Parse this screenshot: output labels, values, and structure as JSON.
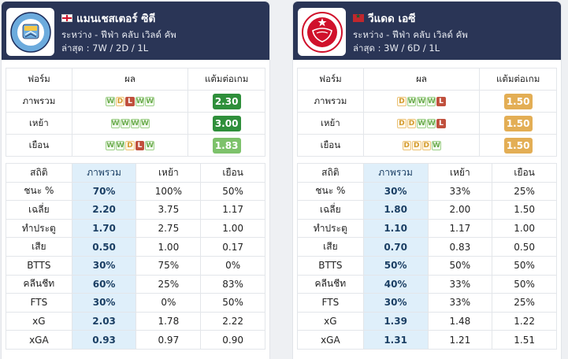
{
  "teams": [
    {
      "name": "แมนเชสเตอร์ ซิตี",
      "flag": "england-flag",
      "logo_text": "MANCHESTER CITY",
      "colors": {
        "primary": "#6cabdd",
        "secondary": "#1c2c5b"
      },
      "league": "ระหว่าง - ฟีฟ่า คลับ เวิลด์ คัพ",
      "latest": "ล่าสุด : 7W / 2D / 1L",
      "form_headers": [
        "ฟอร์ม",
        "ผล",
        "แต้มต่อเกม"
      ],
      "form_rows": [
        {
          "label": "ภาพรวม",
          "results": [
            "W",
            "D",
            "L",
            "W",
            "W"
          ],
          "ppg": "2.30",
          "ppg_level": "g1"
        },
        {
          "label": "เหย้า",
          "results": [
            "W",
            "W",
            "W",
            "W"
          ],
          "ppg": "3.00",
          "ppg_level": "g1"
        },
        {
          "label": "เยือน",
          "results": [
            "W",
            "W",
            "D",
            "L",
            "W"
          ],
          "ppg": "1.83",
          "ppg_level": "g2"
        }
      ],
      "stat_headers": [
        "สถิติ",
        "ภาพรวม",
        "เหย้า",
        "เยือน"
      ],
      "stat_rows": [
        [
          "ชนะ %",
          "70%",
          "100%",
          "50%"
        ],
        [
          "เฉลี่ย",
          "2.20",
          "3.75",
          "1.17"
        ],
        [
          "ทำประตู",
          "1.70",
          "2.75",
          "1.00"
        ],
        [
          "เสีย",
          "0.50",
          "1.00",
          "0.17"
        ],
        [
          "BTTS",
          "30%",
          "75%",
          "0%"
        ],
        [
          "คลีนชีท",
          "60%",
          "25%",
          "83%"
        ],
        [
          "FTS",
          "30%",
          "0%",
          "50%"
        ],
        [
          "xG",
          "2.03",
          "1.78",
          "2.22"
        ],
        [
          "xGA",
          "0.93",
          "0.97",
          "0.90"
        ]
      ]
    },
    {
      "name": "วีแดด เอซี",
      "flag": "morocco-flag",
      "logo_text": "WAC",
      "colors": {
        "primary": "#d0112b",
        "secondary": "#ffffff"
      },
      "league": "ระหว่าง - ฟีฟ่า คลับ เวิลด์ คัพ",
      "latest": "ล่าสุด : 3W / 6D / 1L",
      "form_headers": [
        "ฟอร์ม",
        "ผล",
        "แต้มต่อเกม"
      ],
      "form_rows": [
        {
          "label": "ภาพรวม",
          "results": [
            "D",
            "W",
            "W",
            "W",
            "L"
          ],
          "ppg": "1.50",
          "ppg_level": "o"
        },
        {
          "label": "เหย้า",
          "results": [
            "D",
            "D",
            "W",
            "W",
            "L"
          ],
          "ppg": "1.50",
          "ppg_level": "o"
        },
        {
          "label": "เยือน",
          "results": [
            "D",
            "D",
            "D",
            "W"
          ],
          "ppg": "1.50",
          "ppg_level": "o"
        }
      ],
      "stat_headers": [
        "สถิติ",
        "ภาพรวม",
        "เหย้า",
        "เยือน"
      ],
      "stat_rows": [
        [
          "ชนะ %",
          "30%",
          "33%",
          "25%"
        ],
        [
          "เฉลี่ย",
          "1.80",
          "2.00",
          "1.50"
        ],
        [
          "ทำประตู",
          "1.10",
          "1.17",
          "1.00"
        ],
        [
          "เสีย",
          "0.70",
          "0.83",
          "0.50"
        ],
        [
          "BTTS",
          "50%",
          "50%",
          "50%"
        ],
        [
          "คลีนชีท",
          "40%",
          "33%",
          "50%"
        ],
        [
          "FTS",
          "30%",
          "33%",
          "25%"
        ],
        [
          "xG",
          "1.39",
          "1.48",
          "1.22"
        ],
        [
          "xGA",
          "1.31",
          "1.21",
          "1.51"
        ]
      ]
    }
  ]
}
